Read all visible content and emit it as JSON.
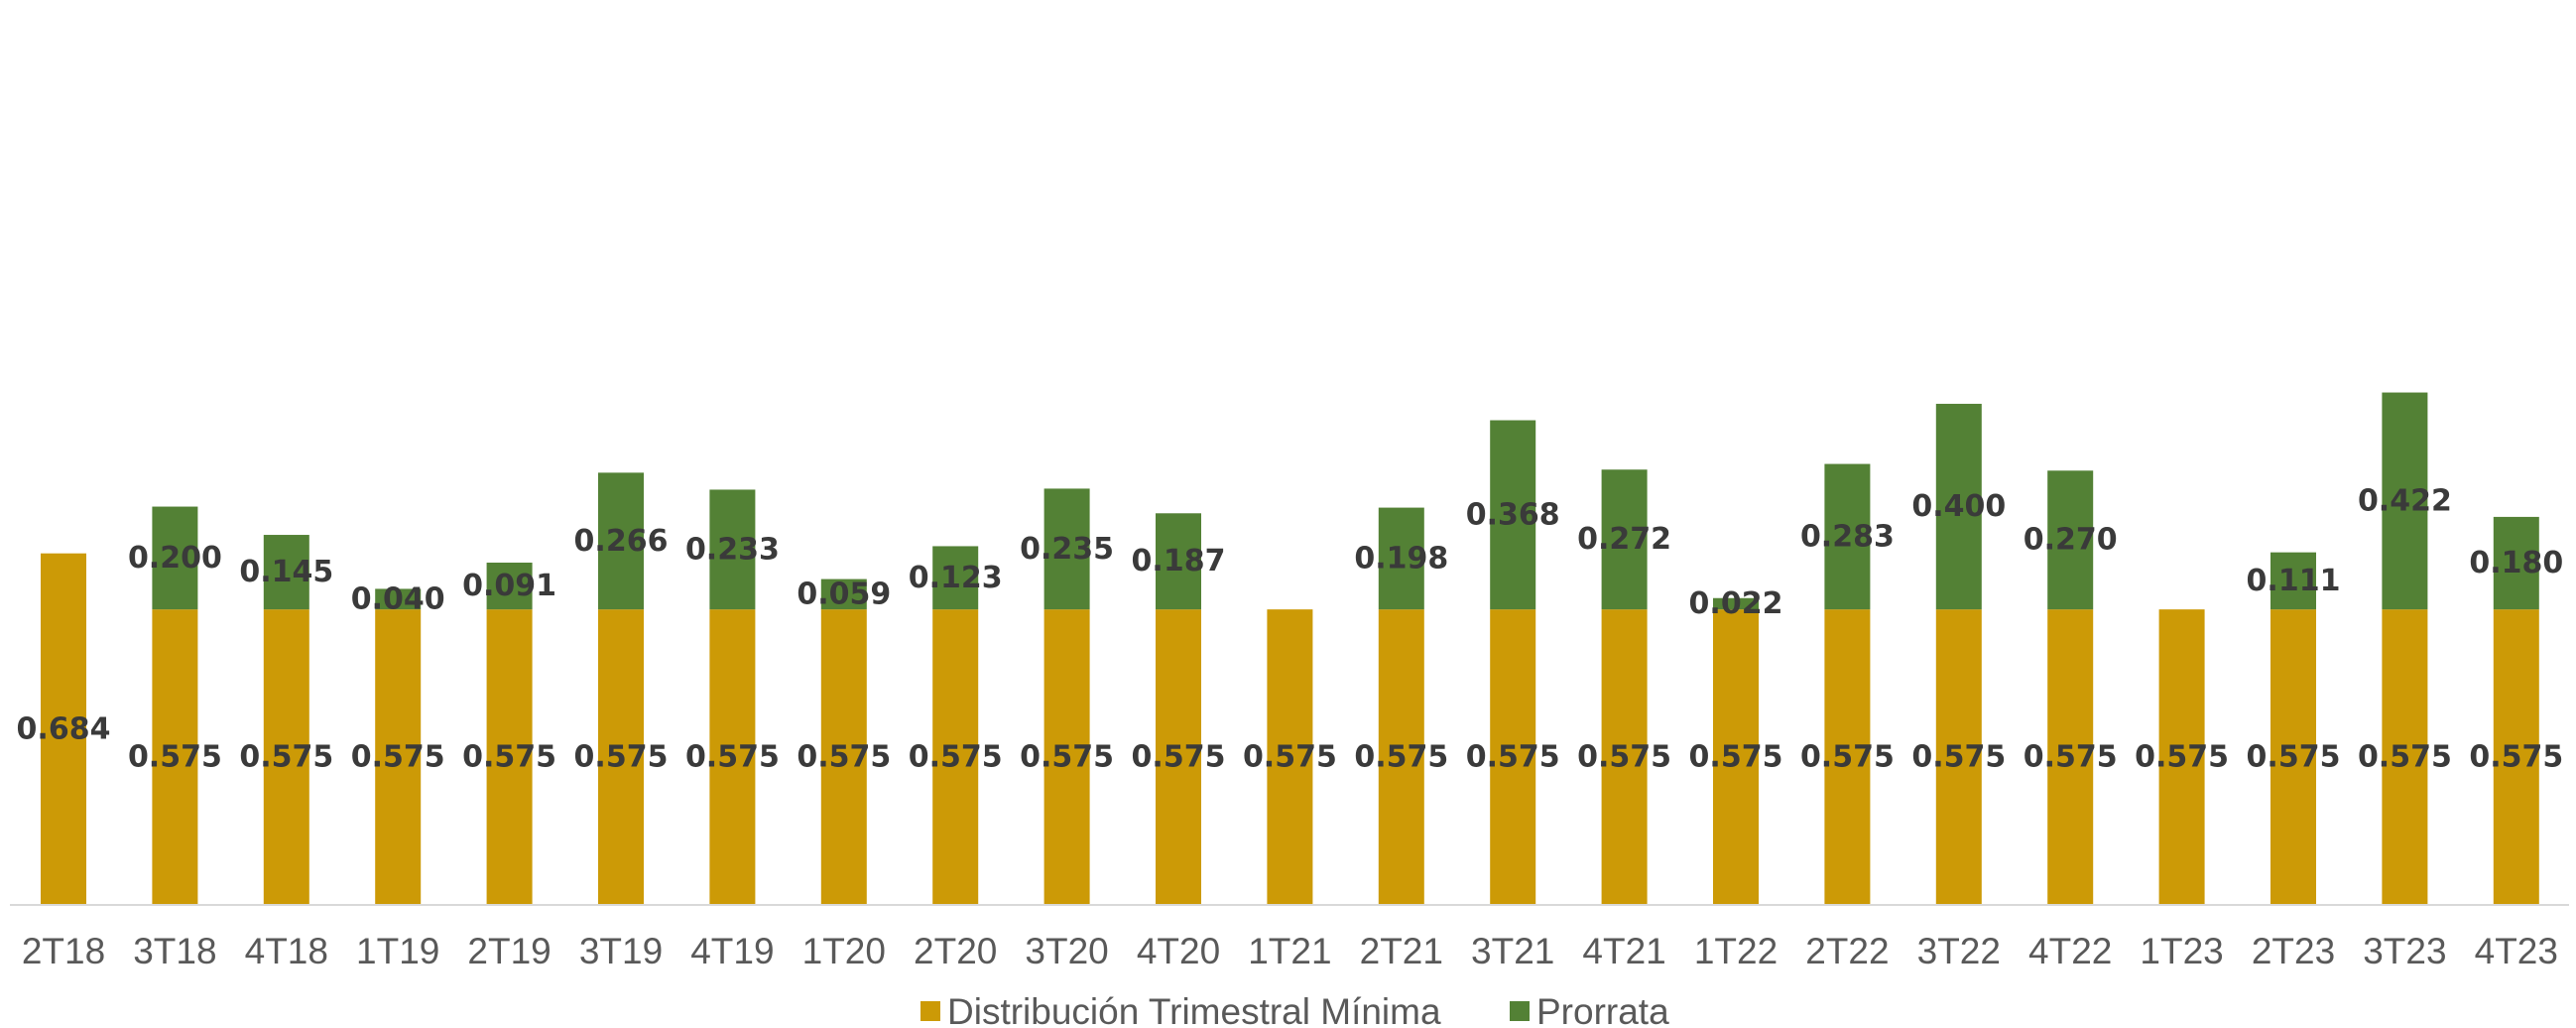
{
  "chart_data": {
    "type": "bar",
    "stacked": true,
    "title": "",
    "xlabel": "",
    "ylabel": "",
    "ylim": [
      0,
      1.0
    ],
    "grid": false,
    "legend_position": "bottom",
    "categories": [
      "2T18",
      "3T18",
      "4T18",
      "1T19",
      "2T19",
      "3T19",
      "4T19",
      "1T20",
      "2T20",
      "3T20",
      "4T20",
      "1T21",
      "2T21",
      "3T21",
      "4T21",
      "1T22",
      "2T22",
      "3T22",
      "4T22",
      "1T23",
      "2T23",
      "3T23",
      "4T23"
    ],
    "series": [
      {
        "name": "Distribución Trimestral Mínima",
        "color": "#cc9a06",
        "values": [
          0.684,
          0.575,
          0.575,
          0.575,
          0.575,
          0.575,
          0.575,
          0.575,
          0.575,
          0.575,
          0.575,
          0.575,
          0.575,
          0.575,
          0.575,
          0.575,
          0.575,
          0.575,
          0.575,
          0.575,
          0.575,
          0.575,
          0.575
        ],
        "labels": [
          "0.684",
          "0.575",
          "0.575",
          "0.575",
          "0.575",
          "0.575",
          "0.575",
          "0.575",
          "0.575",
          "0.575",
          "0.575",
          "0.575",
          "0.575",
          "0.575",
          "0.575",
          "0.575",
          "0.575",
          "0.575",
          "0.575",
          "0.575",
          "0.575",
          "0.575",
          "0.575"
        ]
      },
      {
        "name": "Prorrata",
        "color": "#538135",
        "values": [
          0,
          0.2,
          0.145,
          0.04,
          0.091,
          0.266,
          0.233,
          0.059,
          0.123,
          0.235,
          0.187,
          0,
          0.198,
          0.368,
          0.272,
          0.022,
          0.283,
          0.4,
          0.27,
          0,
          0.111,
          0.422,
          0.18
        ],
        "labels": [
          "",
          "0.200",
          "0.145",
          "0.040",
          "0.091",
          "0.266",
          "0.233",
          "0.059",
          "0.123",
          "0.235",
          "0.187",
          "",
          "0.198",
          "0.368",
          "0.272",
          "0.022",
          "0.283",
          "0.400",
          "0.270",
          "",
          "0.111",
          "0.422",
          "0.180"
        ]
      }
    ]
  }
}
